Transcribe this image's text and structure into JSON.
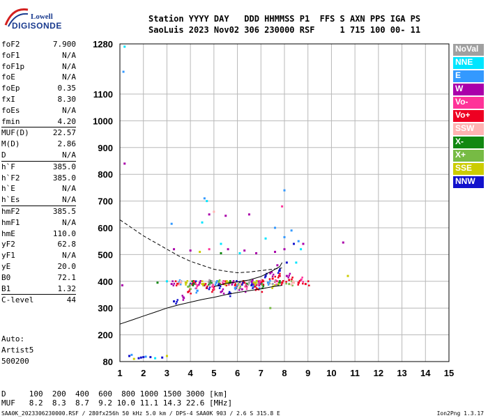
{
  "logo": {
    "line1": "Lowell",
    "line2": "DIGISONDE"
  },
  "header": {
    "line1": "Station YYYY DAY   DDD HHMMSS P1  FFS S AXN PPS IGA PS",
    "line2": "SaoLuis 2023 Nov02 306 230000 RSF     1 715 100 00- 11"
  },
  "params": [
    {
      "key": "foF2",
      "value": "7.900"
    },
    {
      "key": "foF1",
      "value": "N/A"
    },
    {
      "key": "foF1p",
      "value": "N/A"
    },
    {
      "key": "foE",
      "value": "N/A"
    },
    {
      "key": "foEp",
      "value": "0.35"
    },
    {
      "key": "fxI",
      "value": "8.30"
    },
    {
      "key": "foEs",
      "value": "N/A"
    },
    {
      "key": "fmin",
      "value": "4.20"
    },
    {
      "key": "MUF(D)",
      "value": "22.57"
    },
    {
      "key": "M(D)",
      "value": "2.86"
    },
    {
      "key": "D",
      "value": "N/A"
    },
    {
      "key": "h`F",
      "value": "385.0"
    },
    {
      "key": "h`F2",
      "value": "385.0"
    },
    {
      "key": "h`E",
      "value": "N/A"
    },
    {
      "key": "h`Es",
      "value": "N/A"
    },
    {
      "key": "hmF2",
      "value": "385.5"
    },
    {
      "key": "hmF1",
      "value": "N/A"
    },
    {
      "key": "hmE",
      "value": "110.0"
    },
    {
      "key": "yF2",
      "value": "62.8"
    },
    {
      "key": "yF1",
      "value": "N/A"
    },
    {
      "key": "yE",
      "value": "20.0"
    },
    {
      "key": "B0",
      "value": "72.1"
    },
    {
      "key": "B1",
      "value": "1.32"
    },
    {
      "key": "C-level",
      "value": "44"
    }
  ],
  "autoscaling": {
    "line1": "Auto:",
    "line2": "Artist5",
    "line3": "500200"
  },
  "legend": [
    {
      "label": "NoVal",
      "color": "#a0a0a0"
    },
    {
      "label": "NNE",
      "color": "#00e5ff"
    },
    {
      "label": "E",
      "color": "#3399ff"
    },
    {
      "label": "W",
      "color": "#aa00aa"
    },
    {
      "label": "Vo-",
      "color": "#ff3399"
    },
    {
      "label": "Vo+",
      "color": "#ee0022"
    },
    {
      "label": "SSW",
      "color": "#ffb3b3"
    },
    {
      "label": "X-",
      "color": "#118811"
    },
    {
      "label": "X+",
      "color": "#77bb44"
    },
    {
      "label": "SSE",
      "color": "#cccc00"
    },
    {
      "label": "NNW",
      "color": "#1111cc"
    }
  ],
  "muf_table": {
    "d_line": "D     100  200  400  600  800 1000 1500 3000 [km]",
    "muf_line": "MUF   8.2  8.3  8.7  9.2 10.0 11.1 14.3 22.6 [MHz]"
  },
  "footer": {
    "left": "SAA0K_2023306230000.RSF / 280fx256h 50 kHz 5.0 km / DPS-4 SAA0K 903 / 2.6 S 315.8 E",
    "right": "Ion2Png 1.3.17"
  },
  "chart_data": {
    "type": "scatter",
    "x_ticks": [
      1,
      2,
      3,
      4,
      5,
      6,
      7,
      8,
      9,
      10,
      11,
      12,
      13,
      14,
      15
    ],
    "y_ticks": [
      80,
      200,
      300,
      400,
      500,
      600,
      700,
      800,
      900,
      1000,
      1100,
      1280
    ],
    "xlim": [
      1,
      15
    ],
    "ylim": [
      80,
      1280
    ],
    "grid": true,
    "series": [
      {
        "color": "#ee0022",
        "points": [
          [
            4.2,
            395
          ],
          [
            4.6,
            385
          ],
          [
            5.0,
            370
          ],
          [
            5.4,
            390
          ],
          [
            5.9,
            385
          ],
          [
            6.3,
            395
          ],
          [
            6.7,
            380
          ],
          [
            7.1,
            400
          ],
          [
            7.5,
            410
          ],
          [
            7.9,
            395
          ],
          [
            8.2,
            405
          ],
          [
            8.6,
            395
          ],
          [
            8.9,
            390
          ],
          [
            3.5,
            390
          ],
          [
            3.9,
            360
          ],
          [
            6.9,
            370
          ],
          [
            7.8,
            420
          ]
        ]
      },
      {
        "color": "#aa00aa",
        "points": [
          [
            3.2,
            390
          ],
          [
            3.7,
            340
          ],
          [
            4.4,
            395
          ],
          [
            4.9,
            400
          ],
          [
            5.3,
            360
          ],
          [
            5.8,
            395
          ],
          [
            6.2,
            370
          ],
          [
            6.6,
            400
          ],
          [
            7.0,
            390
          ],
          [
            7.4,
            430
          ],
          [
            7.7,
            460
          ],
          [
            8.0,
            520
          ],
          [
            8.1,
            420
          ],
          [
            3.3,
            520
          ],
          [
            4.0,
            515
          ],
          [
            5.6,
            520
          ],
          [
            6.3,
            515
          ],
          [
            6.8,
            505
          ],
          [
            7.6,
            510
          ],
          [
            4.8,
            650
          ],
          [
            5.5,
            645
          ],
          [
            6.5,
            650
          ],
          [
            1.2,
            840
          ],
          [
            10.5,
            545
          ],
          [
            1.1,
            385
          ],
          [
            8.8,
            540
          ]
        ]
      },
      {
        "color": "#1111cc",
        "points": [
          [
            1.4,
            105
          ],
          [
            1.8,
            95
          ],
          [
            2.3,
            100
          ],
          [
            2.8,
            98
          ],
          [
            3.3,
            325
          ],
          [
            4.1,
            390
          ],
          [
            4.7,
            375
          ],
          [
            5.2,
            385
          ],
          [
            5.7,
            355
          ],
          [
            6.1,
            395
          ],
          [
            6.6,
            385
          ],
          [
            7.2,
            420
          ],
          [
            7.8,
            440
          ],
          [
            8.1,
            470
          ],
          [
            8.4,
            540
          ],
          [
            2.0,
            100
          ],
          [
            1.9,
            98
          ]
        ]
      },
      {
        "color": "#3399ff",
        "points": [
          [
            1.5,
            110
          ],
          [
            2.1,
            102
          ],
          [
            3.6,
            400
          ],
          [
            4.3,
            365
          ],
          [
            5.1,
            395
          ],
          [
            5.9,
            375
          ],
          [
            6.8,
            385
          ],
          [
            7.3,
            395
          ],
          [
            8.0,
            565
          ],
          [
            8.3,
            590
          ],
          [
            8.0,
            740
          ],
          [
            4.6,
            710
          ],
          [
            3.2,
            615
          ],
          [
            7.6,
            600
          ],
          [
            8.6,
            550
          ],
          [
            1.15,
            1180
          ]
        ]
      },
      {
        "color": "#00e5ff",
        "points": [
          [
            4.5,
            620
          ],
          [
            5.3,
            540
          ],
          [
            6.1,
            505
          ],
          [
            7.2,
            560
          ],
          [
            8.5,
            470
          ],
          [
            8.7,
            520
          ],
          [
            3.0,
            400
          ],
          [
            2.5,
            95
          ],
          [
            1.2,
            1270
          ],
          [
            4.7,
            700
          ]
        ]
      },
      {
        "color": "#118811",
        "points": [
          [
            4.2,
            390
          ],
          [
            4.9,
            395
          ],
          [
            5.7,
            395
          ],
          [
            6.4,
            390
          ],
          [
            7.1,
            385
          ],
          [
            7.8,
            395
          ],
          [
            5.3,
            505
          ],
          [
            2.6,
            395
          ]
        ]
      },
      {
        "color": "#77bb44",
        "points": [
          [
            3.9,
            380
          ],
          [
            5.2,
            400
          ],
          [
            6.0,
            385
          ],
          [
            6.9,
            395
          ],
          [
            8.2,
            390
          ],
          [
            7.4,
            300
          ]
        ]
      },
      {
        "color": "#cccc00",
        "points": [
          [
            3.8,
            395
          ],
          [
            4.5,
            390
          ],
          [
            5.6,
            395
          ],
          [
            6.7,
            395
          ],
          [
            7.6,
            385
          ],
          [
            4.4,
            510
          ],
          [
            10.7,
            420
          ],
          [
            1.6,
            92
          ],
          [
            3.0,
            105
          ]
        ]
      },
      {
        "color": "#ff3399",
        "points": [
          [
            4.3,
            385
          ],
          [
            5.0,
            380
          ],
          [
            5.5,
            395
          ],
          [
            6.4,
            380
          ],
          [
            7.0,
            395
          ],
          [
            7.7,
            400
          ],
          [
            8.7,
            405
          ],
          [
            4.8,
            520
          ],
          [
            7.9,
            680
          ]
        ]
      },
      {
        "color": "#ffb3b3",
        "points": [
          [
            3.6,
            395
          ],
          [
            6.2,
            390
          ],
          [
            8.4,
            395
          ],
          [
            5.0,
            660
          ]
        ]
      },
      {
        "color": "#a0a0a0",
        "points": [
          [
            4.9,
            400
          ],
          [
            6.5,
            395
          ],
          [
            7.5,
            390
          ]
        ]
      }
    ],
    "curves": [
      {
        "style": "solid",
        "points": [
          [
            1.0,
            240
          ],
          [
            1.5,
            255
          ],
          [
            2.0,
            270
          ],
          [
            2.5,
            285
          ],
          [
            3.0,
            300
          ],
          [
            3.5,
            312
          ],
          [
            4.0,
            322
          ],
          [
            4.5,
            332
          ],
          [
            5.0,
            340
          ],
          [
            5.5,
            350
          ],
          [
            6.0,
            358
          ],
          [
            6.5,
            365
          ],
          [
            7.0,
            372
          ],
          [
            7.5,
            380
          ],
          [
            7.9,
            385
          ]
        ]
      },
      {
        "style": "solid",
        "points": [
          [
            5.0,
            380
          ],
          [
            5.5,
            392
          ],
          [
            6.0,
            398
          ],
          [
            6.5,
            405
          ],
          [
            7.0,
            418
          ],
          [
            7.5,
            440
          ],
          [
            7.8,
            455
          ],
          [
            7.9,
            470
          ]
        ]
      },
      {
        "style": "dashed",
        "points": [
          [
            1.0,
            630
          ],
          [
            1.5,
            600
          ],
          [
            2.0,
            570
          ],
          [
            2.5,
            545
          ],
          [
            3.0,
            520
          ],
          [
            3.5,
            495
          ],
          [
            4.0,
            475
          ],
          [
            4.5,
            460
          ],
          [
            5.0,
            445
          ],
          [
            5.5,
            438
          ],
          [
            6.0,
            432
          ],
          [
            6.5,
            435
          ],
          [
            7.0,
            440
          ],
          [
            7.5,
            445
          ],
          [
            7.9,
            450
          ]
        ]
      }
    ]
  }
}
